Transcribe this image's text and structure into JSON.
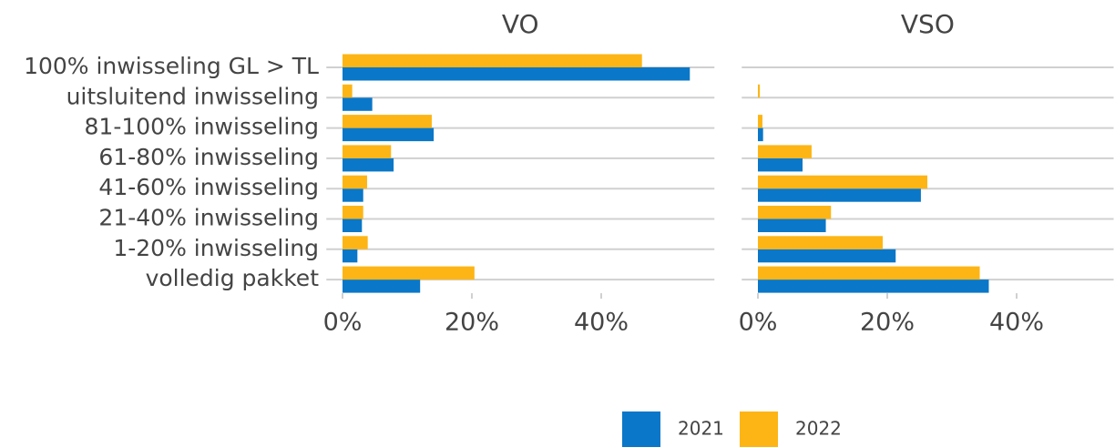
{
  "chart_data": [
    {
      "type": "bar",
      "orientation": "horizontal",
      "title": "VO",
      "categories": [
        "100% inwisseling GL > TL",
        "uitsluitend inwisseling",
        "81-100% inwisseling",
        "61-80% inwisseling",
        "41-60% inwisseling",
        "21-40% inwisseling",
        "1-20% inwisseling",
        "volledig pakket"
      ],
      "series": [
        {
          "name": "2021",
          "color": "#0a77c8",
          "values": [
            53.7,
            4.6,
            14.1,
            7.9,
            3.2,
            3.0,
            2.3,
            12.0
          ]
        },
        {
          "name": "2022",
          "color": "#fdb515",
          "values": [
            46.3,
            1.5,
            13.8,
            7.5,
            3.8,
            3.2,
            3.9,
            20.4
          ]
        }
      ],
      "xlim": [
        -2.5,
        57.5
      ],
      "xticks": [
        {
          "value": 0,
          "label": "0%"
        },
        {
          "value": 20,
          "label": "20%"
        },
        {
          "value": 40,
          "label": "40%"
        }
      ],
      "grid": true
    },
    {
      "type": "bar",
      "orientation": "horizontal",
      "title": "VSO",
      "categories": [
        "100% inwisseling GL > TL",
        "uitsluitend inwisseling",
        "81-100% inwisseling",
        "61-80% inwisseling",
        "41-60% inwisseling",
        "21-40% inwisseling",
        "1-20% inwisseling",
        "volledig pakket"
      ],
      "series": [
        {
          "name": "2021",
          "color": "#0a77c8",
          "values": [
            0,
            0,
            0.8,
            6.9,
            25.2,
            10.5,
            21.3,
            35.7
          ]
        },
        {
          "name": "2022",
          "color": "#fdb515",
          "values": [
            0,
            0.3,
            0.7,
            8.3,
            26.2,
            11.3,
            19.3,
            34.3
          ]
        }
      ],
      "xlim": [
        -2.5,
        55
      ],
      "xticks": [
        {
          "value": 0,
          "label": "0%"
        },
        {
          "value": 20,
          "label": "20%"
        },
        {
          "value": 40,
          "label": "40%"
        }
      ],
      "grid": true
    }
  ]
}
